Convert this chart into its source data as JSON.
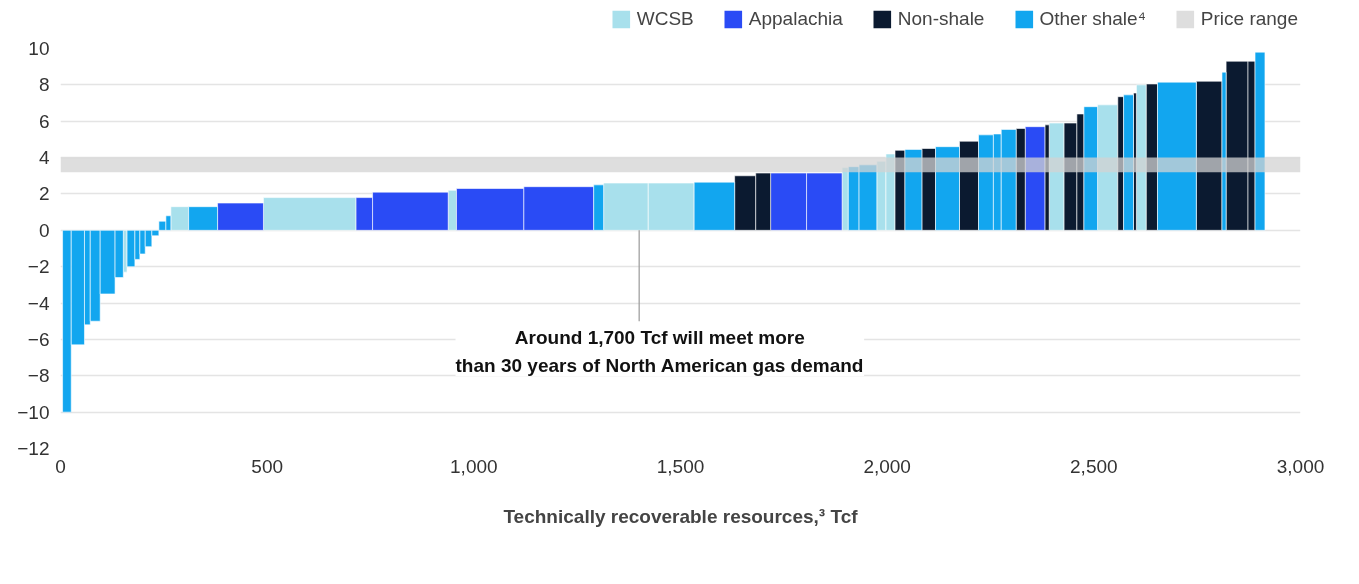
{
  "chart_data": {
    "type": "histogram",
    "xlabel": "Technically recoverable resources,³ Tcf",
    "bins": [
      5,
      26,
      58,
      72,
      96,
      132,
      152,
      161,
      180,
      192,
      205,
      221,
      238,
      255,
      267,
      310,
      380,
      491,
      715,
      755,
      938,
      958,
      1121,
      1290,
      1314,
      1422,
      1533,
      1631,
      1682,
      1718,
      1805,
      1891,
      1906,
      1932,
      1975,
      1997,
      2019,
      2043,
      2084,
      2117,
      2175,
      2221,
      2257,
      2276,
      2312,
      2334,
      2382,
      2392,
      2428,
      2459,
      2476,
      2509,
      2558,
      2572,
      2596,
      2603,
      2627,
      2654,
      2748,
      2810,
      2820,
      2873,
      2890,
      2914
    ],
    "series": [
      {
        "name": "WCSB",
        "color": "#a8e0ec",
        "values": [
          null,
          null,
          null,
          null,
          null,
          null,
          -2.3,
          null,
          null,
          null,
          null,
          null,
          null,
          null,
          1.3,
          null,
          null,
          1.8,
          null,
          null,
          2.2,
          null,
          null,
          null,
          2.6,
          2.6,
          null,
          null,
          null,
          null,
          null,
          3.45,
          null,
          null,
          3.8,
          4.2,
          null,
          null,
          null,
          null,
          null,
          null,
          null,
          null,
          null,
          null,
          null,
          5.9,
          null,
          null,
          null,
          6.9,
          null,
          null,
          null,
          8.0,
          null,
          null,
          null,
          null,
          null,
          null,
          null
        ]
      },
      {
        "name": "Appalachia",
        "color": "#2a4bf5",
        "values": [
          null,
          null,
          null,
          null,
          null,
          null,
          null,
          null,
          null,
          null,
          null,
          null,
          null,
          null,
          null,
          null,
          1.5,
          null,
          1.8,
          2.1,
          null,
          2.3,
          2.4,
          null,
          null,
          null,
          null,
          null,
          null,
          3.15,
          3.15,
          null,
          null,
          null,
          null,
          null,
          null,
          null,
          null,
          null,
          null,
          null,
          null,
          null,
          null,
          5.7,
          null,
          null,
          null,
          null,
          null,
          null,
          null,
          null,
          null,
          null,
          null,
          null,
          null,
          null,
          null,
          null,
          null
        ]
      },
      {
        "name": "Non-shale",
        "color": "#0b1a30",
        "values": [
          null,
          null,
          null,
          null,
          null,
          null,
          null,
          null,
          null,
          null,
          null,
          null,
          null,
          null,
          null,
          null,
          null,
          null,
          null,
          null,
          null,
          null,
          null,
          null,
          null,
          null,
          null,
          3.0,
          3.15,
          null,
          null,
          null,
          null,
          null,
          null,
          null,
          4.4,
          null,
          4.5,
          null,
          4.9,
          null,
          null,
          null,
          5.6,
          null,
          5.8,
          null,
          5.9,
          6.4,
          null,
          null,
          7.35,
          null,
          7.55,
          null,
          8.05,
          null,
          8.2,
          null,
          9.3,
          9.3,
          null
        ]
      },
      {
        "name": "Other shale⁴",
        "color": "#12a6ef",
        "values": [
          -10.0,
          -6.3,
          -5.2,
          -5.0,
          -3.5,
          -2.6,
          null,
          -2.0,
          -1.6,
          -1.3,
          -0.9,
          -0.3,
          0.5,
          0.8,
          null,
          1.3,
          null,
          null,
          null,
          null,
          null,
          null,
          null,
          2.5,
          null,
          null,
          2.65,
          null,
          null,
          null,
          null,
          null,
          3.5,
          3.6,
          null,
          null,
          null,
          4.45,
          null,
          4.6,
          null,
          5.25,
          5.3,
          5.55,
          null,
          null,
          null,
          null,
          null,
          null,
          6.8,
          null,
          null,
          7.45,
          null,
          null,
          null,
          8.15,
          null,
          8.7,
          null,
          null,
          9.8
        ]
      }
    ],
    "bands": [
      {
        "axis": "y",
        "from": 3.2,
        "to": 4.0,
        "label": "Price range",
        "color": "#d3d3d3"
      }
    ],
    "annotations": [
      {
        "text": "Around 1,700 Tcf will meet more\nthan 30 years of North American gas demand",
        "x": 1400,
        "y": 0
      }
    ],
    "xlim": [
      0,
      3000
    ],
    "xticks": [
      0,
      500,
      {
        "value": 1000,
        "label": "1,000"
      },
      {
        "value": 1500,
        "label": "1,500"
      },
      {
        "value": 2000,
        "label": "2,000"
      },
      {
        "value": 2500,
        "label": "2,500"
      },
      {
        "value": 3000,
        "label": "3,000"
      }
    ],
    "ylim": [
      -12,
      10
    ],
    "yticks": [
      -12,
      -10,
      -8,
      -6,
      -4,
      -2,
      0,
      2,
      4,
      6,
      8,
      10
    ],
    "grid": "y",
    "legend": "top right"
  }
}
